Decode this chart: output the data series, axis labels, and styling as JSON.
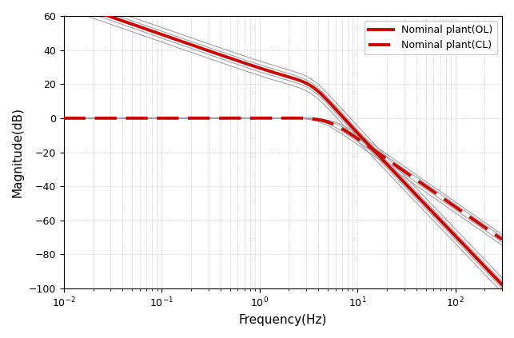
{
  "xlabel": "Frequency(Hz)",
  "ylabel": "Magnitude(dB)",
  "xlim": [
    0.01,
    300
  ],
  "ylim": [
    -100,
    60
  ],
  "yticks": [
    -100,
    -80,
    -60,
    -40,
    -20,
    0,
    20,
    40,
    60
  ],
  "legend_OL": "Nominal plant(OL)",
  "legend_CL": "Nominal plant(CL)",
  "OL_color": "#cc0000",
  "CL_color": "#cc0000",
  "gray_color": "#999999",
  "background_color": "#ffffff",
  "grid_color": "#aaaaaa",
  "OL_gain": 180.0,
  "OL_wn_hz": 3.5,
  "OL_zeta": 0.5,
  "CL_wn_hz": 5.0,
  "CL_zeta": 0.65,
  "gray_OL_gains": [
    0.6,
    0.78,
    1.25,
    1.6
  ],
  "gray_CL_wn_factors": [
    0.82,
    0.91,
    1.09,
    1.18
  ],
  "linewidth_main": 2.8,
  "linewidth_gray": 0.8
}
